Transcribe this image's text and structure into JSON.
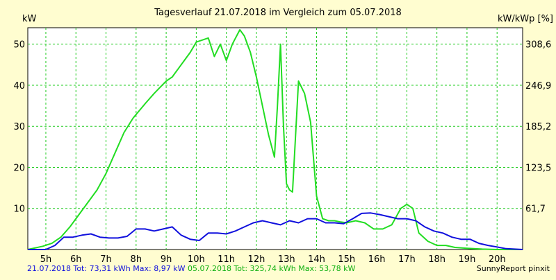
{
  "chart_data": {
    "type": "line",
    "title": "Tagesverlauf 21.07.2018 im Vergleich zum 05.07.2018",
    "ylabel_left": "kW",
    "ylabel_right": "kW/kWp [%]",
    "ylim": [
      0,
      54
    ],
    "y_ticks": [
      10,
      20,
      30,
      40,
      50
    ],
    "y_right_ticks": [
      "61,7",
      "123,5",
      "185,2",
      "246,9",
      "308,6"
    ],
    "x_domain": [
      4.4,
      20.85
    ],
    "x_ticks": [
      "5h",
      "6h",
      "7h",
      "8h",
      "9h",
      "10h",
      "11h",
      "12h",
      "13h",
      "14h",
      "15h",
      "16h",
      "17h",
      "18h",
      "19h",
      "20h"
    ],
    "grid": true,
    "colors": {
      "series_green": "#22dd22",
      "series_blue": "#1010dd",
      "grid": "#22cc22",
      "background": "#fffdd0",
      "plot_background": "#ffffff"
    },
    "series": [
      {
        "key": "green",
        "x": [
          4.4,
          4.9,
          5.2,
          5.5,
          5.8,
          6.1,
          6.4,
          6.7,
          7.0,
          7.3,
          7.6,
          7.9,
          8.3,
          8.6,
          8.8,
          9.0,
          9.2,
          9.4,
          9.6,
          9.8,
          10.0,
          10.2,
          10.4,
          10.6,
          10.8,
          11.0,
          11.2,
          11.45,
          11.6,
          11.8,
          12.0,
          12.2,
          12.4,
          12.6,
          12.7,
          12.8,
          12.9,
          13.0,
          13.1,
          13.2,
          13.4,
          13.6,
          13.8,
          14.0,
          14.2,
          14.4,
          14.6,
          14.8,
          15.0,
          15.3,
          15.6,
          15.9,
          16.2,
          16.5,
          16.8,
          17.0,
          17.2,
          17.4,
          17.7,
          18.0,
          18.3,
          18.6,
          19.0,
          19.5,
          20.0,
          20.4,
          20.85
        ],
        "y": [
          0,
          0.8,
          1.5,
          3,
          5.5,
          8.5,
          11.5,
          14.5,
          18.5,
          23.5,
          28.5,
          32,
          35.5,
          38,
          39.5,
          41,
          42,
          44,
          46,
          48,
          50.5,
          51,
          51.5,
          47,
          50,
          46,
          50,
          53.5,
          52,
          48,
          42,
          35,
          28,
          22.5,
          35,
          50,
          30,
          16,
          14.5,
          14,
          41,
          38,
          31,
          13,
          7.5,
          7,
          7,
          6.7,
          6.5,
          7,
          6.5,
          5,
          5,
          6,
          10,
          11,
          10,
          4,
          2,
          1,
          1,
          0.5,
          0.3,
          0.1,
          0,
          0,
          0
        ]
      },
      {
        "key": "blue",
        "x": [
          4.4,
          5.0,
          5.3,
          5.6,
          5.9,
          6.2,
          6.5,
          6.8,
          7.1,
          7.4,
          7.7,
          8.0,
          8.3,
          8.6,
          8.9,
          9.2,
          9.5,
          9.8,
          10.1,
          10.4,
          10.7,
          11.0,
          11.3,
          11.6,
          11.9,
          12.2,
          12.5,
          12.8,
          13.1,
          13.4,
          13.7,
          14.0,
          14.3,
          14.6,
          14.9,
          15.2,
          15.5,
          15.8,
          16.1,
          16.4,
          16.7,
          17.0,
          17.3,
          17.6,
          17.9,
          18.2,
          18.5,
          18.8,
          19.1,
          19.4,
          19.7,
          20.0,
          20.3,
          20.85
        ],
        "y": [
          0,
          0,
          1,
          3,
          3,
          3.5,
          3.8,
          3,
          2.8,
          2.8,
          3.2,
          5,
          5,
          4.5,
          5,
          5.5,
          3.5,
          2.5,
          2.2,
          4,
          4,
          3.8,
          4.5,
          5.5,
          6.5,
          7,
          6.5,
          6,
          7,
          6.5,
          7.5,
          7.5,
          6.5,
          6.5,
          6.3,
          7.5,
          8.8,
          8.9,
          8.5,
          8,
          7.5,
          7.5,
          7,
          5.5,
          4.5,
          4,
          3,
          2.5,
          2.5,
          1.5,
          1,
          0.6,
          0.2,
          0
        ]
      }
    ]
  },
  "footer": {
    "blue_text": "21.07.2018 Tot: 73,31 kWh Max: 8,97 kW",
    "green_text": "05.07.2018 Tot: 325,74 kWh Max: 53,78 kW",
    "credit": "SunnyReport pinxit"
  }
}
